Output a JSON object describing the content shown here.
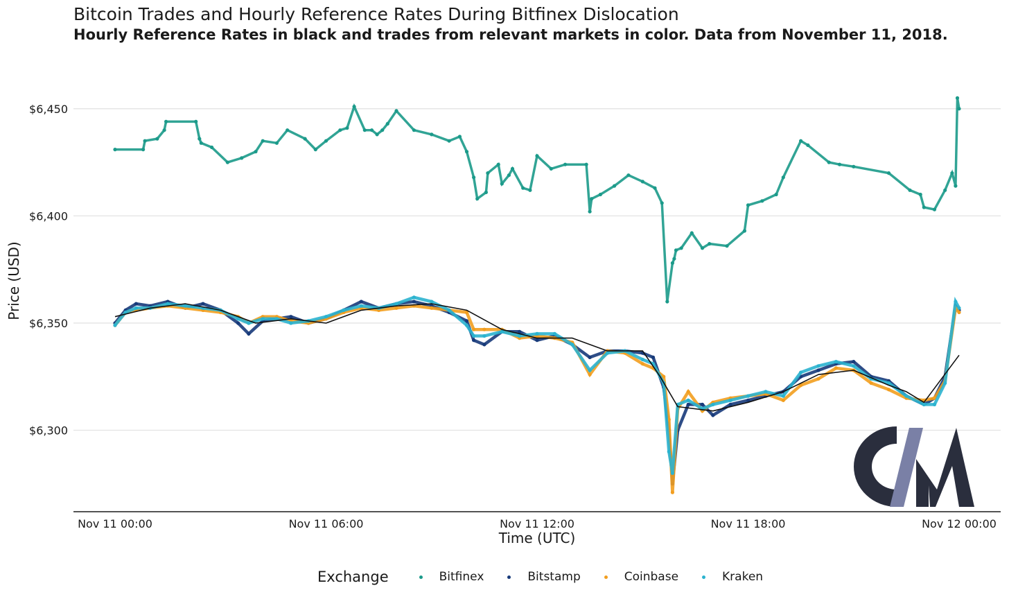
{
  "colors": {
    "bitfinex": "#1b9a8a",
    "bitstamp": "#173a7a",
    "coinbase": "#f29e1f",
    "kraken": "#2bb3cf",
    "reference": "#111111",
    "logo_dark": "#2a2e3d",
    "logo_slash": "#7a80a6"
  },
  "logo": {
    "text": "CM"
  },
  "chart_data": {
    "type": "scatter",
    "title": "Bitcoin Trades and Hourly Reference Rates During Bitfinex Dislocation",
    "subtitle": "Hourly Reference Rates in black and trades from relevant markets in color. Data from November 11, 2018.",
    "xlabel": "Time (UTC)",
    "ylabel": "Price (USD)",
    "x_unit": "hours since Nov 11 00:00 UTC",
    "xlim": [
      0,
      24
    ],
    "ylim": [
      6262,
      6470
    ],
    "grid": "horizontal",
    "legend_position": "bottom",
    "legend_title": "Exchange",
    "x_ticks": [
      {
        "value": 0,
        "label": "Nov 11 00:00"
      },
      {
        "value": 6,
        "label": "Nov 11 06:00"
      },
      {
        "value": 12,
        "label": "Nov 11 12:00"
      },
      {
        "value": 18,
        "label": "Nov 11 18:00"
      },
      {
        "value": 24,
        "label": "Nov 12 00:00"
      }
    ],
    "y_ticks": [
      {
        "value": 6300,
        "label": "$6,300"
      },
      {
        "value": 6350,
        "label": "$6,350"
      },
      {
        "value": 6400,
        "label": "$6,400"
      },
      {
        "value": 6450,
        "label": "$6,450"
      }
    ],
    "series": [
      {
        "name": "Bitfinex",
        "color_key": "bitfinex",
        "x": [
          0,
          0.8,
          0.85,
          1.2,
          1.4,
          1.45,
          2.3,
          2.4,
          2.45,
          2.75,
          3.2,
          3.6,
          4.0,
          4.2,
          4.6,
          4.9,
          5.4,
          5.7,
          6.0,
          6.4,
          6.6,
          6.8,
          7.1,
          7.3,
          7.45,
          7.6,
          7.75,
          8.0,
          8.5,
          9.0,
          9.5,
          9.8,
          10.0,
          10.2,
          10.3,
          10.55,
          10.6,
          10.9,
          11.0,
          11.2,
          11.3,
          11.6,
          11.8,
          12.0,
          12.4,
          12.8,
          13.4,
          13.5,
          13.55,
          13.8,
          14.2,
          14.6,
          15.0,
          15.35,
          15.55,
          15.7,
          15.85,
          15.9,
          15.95,
          16.1,
          16.4,
          16.7,
          16.9,
          17.4,
          17.9,
          18.0,
          18.4,
          18.8,
          19.0,
          19.5,
          19.7,
          20.3,
          20.6,
          21.0,
          22.0,
          22.6,
          22.9,
          23.0,
          23.3,
          23.6,
          23.8,
          23.9,
          23.95,
          24.0
        ],
        "y": [
          6431,
          6431,
          6435,
          6436,
          6440,
          6444,
          6444,
          6436,
          6434,
          6432,
          6425,
          6427,
          6430,
          6435,
          6434,
          6440,
          6436,
          6431,
          6435,
          6440,
          6441,
          6451,
          6440,
          6440,
          6438,
          6440,
          6443,
          6449,
          6440,
          6438,
          6435,
          6437,
          6430,
          6418,
          6408,
          6411,
          6420,
          6424,
          6415,
          6419,
          6422,
          6413,
          6412,
          6428,
          6422,
          6424,
          6424,
          6402,
          6408,
          6410,
          6414,
          6419,
          6416,
          6413,
          6406,
          6360,
          6378,
          6380,
          6384,
          6385,
          6392,
          6385,
          6387,
          6386,
          6393,
          6405,
          6407,
          6410,
          6418,
          6435,
          6433,
          6425,
          6424,
          6423,
          6420,
          6412,
          6410,
          6404,
          6403,
          6412,
          6420,
          6414,
          6455,
          6450
        ]
      },
      {
        "name": "Bitstamp",
        "color_key": "bitstamp",
        "x": [
          0,
          0.3,
          0.6,
          1.0,
          1.5,
          2.0,
          2.5,
          3.0,
          3.5,
          3.8,
          4.2,
          4.6,
          5.0,
          5.5,
          6.0,
          6.5,
          7.0,
          7.5,
          8.0,
          8.5,
          9.0,
          9.5,
          10.0,
          10.2,
          10.5,
          11.0,
          11.5,
          12.0,
          12.5,
          13.0,
          13.5,
          14.0,
          14.5,
          15.0,
          15.3,
          15.6,
          15.75,
          15.85,
          16.0,
          16.3,
          16.7,
          17.0,
          17.5,
          18.0,
          18.5,
          19.0,
          19.5,
          20.0,
          20.5,
          21.0,
          21.5,
          22.0,
          22.5,
          23.0,
          23.3,
          23.6,
          23.9,
          24.0
        ],
        "y": [
          6350,
          6356,
          6359,
          6358,
          6360,
          6357,
          6359,
          6356,
          6350,
          6345,
          6351,
          6352,
          6353,
          6350,
          6352,
          6356,
          6360,
          6357,
          6359,
          6360,
          6358,
          6355,
          6351,
          6342,
          6340,
          6346,
          6346,
          6342,
          6344,
          6340,
          6334,
          6337,
          6337,
          6336,
          6334,
          6320,
          6300,
          6275,
          6300,
          6312,
          6312,
          6307,
          6312,
          6314,
          6316,
          6318,
          6325,
          6328,
          6331,
          6332,
          6325,
          6323,
          6316,
          6312,
          6315,
          6325,
          6358,
          6356
        ]
      },
      {
        "name": "Coinbase",
        "color_key": "coinbase",
        "x": [
          0,
          0.3,
          0.6,
          1.0,
          1.5,
          2.0,
          2.5,
          3.0,
          3.5,
          3.8,
          4.2,
          4.6,
          5.0,
          5.5,
          6.0,
          6.5,
          7.0,
          7.5,
          8.0,
          8.5,
          9.0,
          9.5,
          10.0,
          10.2,
          10.5,
          11.0,
          11.5,
          12.0,
          12.5,
          13.0,
          13.5,
          14.0,
          14.5,
          15.0,
          15.3,
          15.6,
          15.75,
          15.85,
          16.0,
          16.3,
          16.7,
          17.0,
          17.5,
          18.0,
          18.5,
          19.0,
          19.5,
          20.0,
          20.5,
          21.0,
          21.5,
          22.0,
          22.5,
          23.0,
          23.3,
          23.6,
          23.9,
          24.0
        ],
        "y": [
          6349,
          6355,
          6356,
          6357,
          6358,
          6357,
          6356,
          6355,
          6353,
          6350,
          6353,
          6353,
          6351,
          6350,
          6352,
          6355,
          6357,
          6356,
          6357,
          6358,
          6357,
          6356,
          6355,
          6347,
          6347,
          6347,
          6343,
          6344,
          6343,
          6341,
          6326,
          6337,
          6336,
          6331,
          6329,
          6325,
          6305,
          6271,
          6310,
          6318,
          6309,
          6313,
          6315,
          6316,
          6317,
          6314,
          6321,
          6324,
          6329,
          6328,
          6322,
          6319,
          6315,
          6314,
          6315,
          6323,
          6357,
          6355
        ]
      },
      {
        "name": "Kraken",
        "color_key": "kraken",
        "x": [
          0,
          0.3,
          0.6,
          1.0,
          1.5,
          2.0,
          2.5,
          3.0,
          3.5,
          3.8,
          4.2,
          4.6,
          5.0,
          5.5,
          6.0,
          6.5,
          7.0,
          7.5,
          8.0,
          8.5,
          9.0,
          9.5,
          10.0,
          10.2,
          10.5,
          11.0,
          11.5,
          12.0,
          12.5,
          13.0,
          13.5,
          14.0,
          14.5,
          15.0,
          15.3,
          15.6,
          15.75,
          15.85,
          16.0,
          16.3,
          16.7,
          17.0,
          17.5,
          18.0,
          18.5,
          19.0,
          19.5,
          20.0,
          20.5,
          21.0,
          21.5,
          22.0,
          22.5,
          23.0,
          23.3,
          23.6,
          23.9,
          24.0
        ],
        "y": [
          6349,
          6355,
          6357,
          6357,
          6359,
          6358,
          6357,
          6356,
          6352,
          6350,
          6352,
          6352,
          6350,
          6351,
          6353,
          6356,
          6358,
          6357,
          6359,
          6362,
          6360,
          6356,
          6349,
          6344,
          6344,
          6346,
          6344,
          6345,
          6345,
          6340,
          6328,
          6336,
          6337,
          6333,
          6331,
          6322,
          6290,
          6280,
          6312,
          6314,
          6310,
          6312,
          6314,
          6316,
          6318,
          6316,
          6327,
          6330,
          6332,
          6330,
          6324,
          6322,
          6316,
          6312,
          6312,
          6322,
          6360,
          6357
        ]
      },
      {
        "name": "Reference Rate",
        "color_key": "reference",
        "x": [
          0,
          0.5,
          1,
          2,
          3,
          4,
          5,
          6,
          7,
          8,
          9,
          10,
          11,
          12,
          13,
          14,
          15,
          15.5,
          16,
          17,
          18,
          19,
          20,
          21,
          22,
          22.5,
          23,
          24
        ],
        "y": [
          6353,
          6355,
          6357,
          6359,
          6356,
          6350,
          6352,
          6350,
          6356,
          6358,
          6359,
          6356,
          6347,
          6343,
          6343,
          6337,
          6337,
          6325,
          6311,
          6309,
          6313,
          6318,
          6326,
          6328,
          6321,
          6318,
          6313,
          6335
        ]
      }
    ]
  }
}
